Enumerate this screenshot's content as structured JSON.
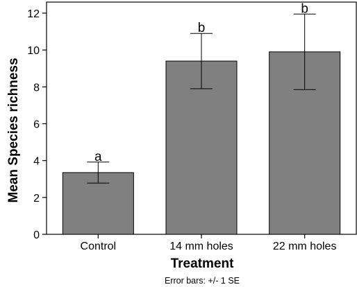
{
  "chart_data": {
    "type": "bar",
    "categories": [
      "Control",
      "14 mm holes",
      "22 mm holes"
    ],
    "values": [
      3.35,
      9.4,
      9.9
    ],
    "error": [
      0.57,
      1.5,
      2.05
    ],
    "significance_labels": [
      "a",
      "b",
      "b"
    ],
    "xlabel": "Treatment",
    "ylabel": "Mean Species richness",
    "ylim": [
      0,
      12.6
    ],
    "yticks": [
      0,
      2,
      4,
      6,
      8,
      10,
      12
    ],
    "footnote": "Error bars: +/- 1 SE",
    "grid": false,
    "bar_color": "#808080"
  }
}
